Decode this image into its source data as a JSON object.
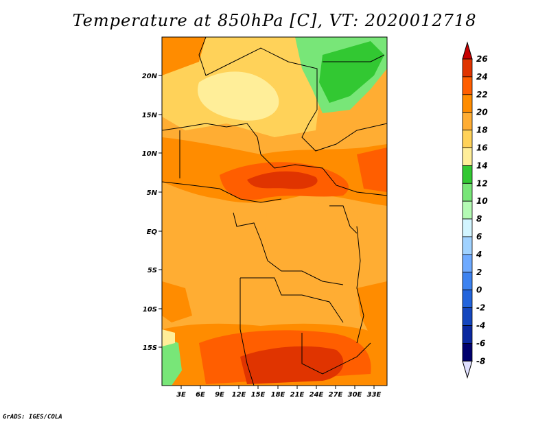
{
  "title": "Temperature at 850hPa [C], VT: 2020012718",
  "footer": "GrADS: IGES/COLA",
  "map": {
    "lat_ticks": [
      "20N",
      "15N",
      "10N",
      "5N",
      "EQ",
      "5S",
      "10S",
      "15S"
    ],
    "lon_ticks": [
      "3E",
      "6E",
      "9E",
      "12E",
      "15E",
      "18E",
      "21E",
      "24E",
      "27E",
      "30E",
      "33E"
    ]
  },
  "colorbar": {
    "levels": [
      "26",
      "24",
      "22",
      "20",
      "18",
      "16",
      "14",
      "12",
      "10",
      "8",
      "6",
      "4",
      "2",
      "0",
      "-2",
      "-4",
      "-6",
      "-8"
    ],
    "colors": [
      "#a00000",
      "#e03400",
      "#ff5e00",
      "#ff8c00",
      "#ffad33",
      "#ffd259",
      "#ffee99",
      "#32c832",
      "#78e678",
      "#b4fab4",
      "#d2f5ff",
      "#a0d2ff",
      "#6eaaff",
      "#3c82f0",
      "#2264dc",
      "#1446be",
      "#0a28a0",
      "#00006e"
    ],
    "top_triangle_color": "#c80000",
    "bottom_triangle_color": "#e0e0ff"
  }
}
